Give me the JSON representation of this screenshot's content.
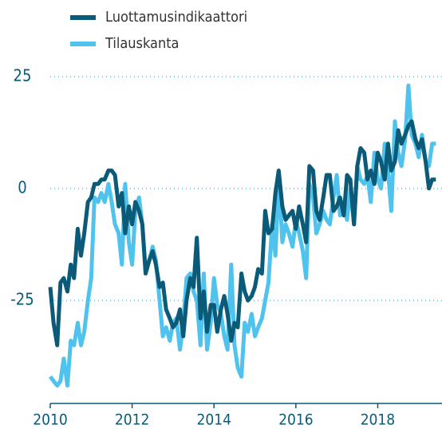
{
  "chart_data": {
    "type": "line",
    "x": [
      2010.0,
      2010.08,
      2010.17,
      2010.25,
      2010.33,
      2010.42,
      2010.5,
      2010.58,
      2010.67,
      2010.75,
      2010.83,
      2010.92,
      2011.0,
      2011.08,
      2011.17,
      2011.25,
      2011.33,
      2011.42,
      2011.5,
      2011.58,
      2011.67,
      2011.75,
      2011.83,
      2011.92,
      2012.0,
      2012.08,
      2012.17,
      2012.25,
      2012.33,
      2012.42,
      2012.5,
      2012.58,
      2012.67,
      2012.75,
      2012.83,
      2012.92,
      2013.0,
      2013.08,
      2013.17,
      2013.25,
      2013.33,
      2013.42,
      2013.5,
      2013.58,
      2013.67,
      2013.75,
      2013.83,
      2013.92,
      2014.0,
      2014.08,
      2014.17,
      2014.25,
      2014.33,
      2014.42,
      2014.5,
      2014.58,
      2014.67,
      2014.75,
      2014.83,
      2014.92,
      2015.0,
      2015.08,
      2015.17,
      2015.25,
      2015.33,
      2015.42,
      2015.5,
      2015.58,
      2015.67,
      2015.75,
      2015.83,
      2015.92,
      2016.0,
      2016.08,
      2016.17,
      2016.25,
      2016.33,
      2016.42,
      2016.5,
      2016.58,
      2016.67,
      2016.75,
      2016.83,
      2016.92,
      2017.0,
      2017.08,
      2017.17,
      2017.25,
      2017.33,
      2017.42,
      2017.5,
      2017.58,
      2017.67,
      2017.75,
      2017.83,
      2017.92,
      2018.0,
      2018.08,
      2018.17,
      2018.25,
      2018.33,
      2018.42,
      2018.5,
      2018.58,
      2018.67,
      2018.75,
      2018.83,
      2018.92,
      2019.0,
      2019.08,
      2019.17,
      2019.25,
      2019.33,
      2019.42
    ],
    "series": [
      {
        "name": "Luottamusindikaattori",
        "color": "#0b5a78",
        "values": [
          -22,
          -30,
          -35,
          -21,
          -20,
          -23,
          -17,
          -20,
          -9,
          -15,
          -10,
          -3,
          -2,
          1,
          1,
          2,
          2,
          4,
          4,
          3,
          -4,
          -1,
          -10,
          -4,
          -8,
          -3,
          -5,
          -8,
          -19,
          -16,
          -14,
          -17,
          -22,
          -21,
          -27,
          -29,
          -31,
          -30,
          -27,
          -33,
          -25,
          -20,
          -22,
          -11,
          -29,
          -23,
          -32,
          -26,
          -26,
          -32,
          -27,
          -24,
          -28,
          -34,
          -30,
          -31,
          -19,
          -23,
          -25,
          -24,
          -22,
          -18,
          -19,
          -5,
          -10,
          -9,
          -1,
          4,
          -4,
          -7,
          -6,
          -5,
          -9,
          -4,
          -8,
          -12,
          5,
          4,
          -5,
          -7,
          -2,
          3,
          3,
          -5,
          -4,
          -2,
          -6,
          3,
          2,
          -8,
          5,
          9,
          8,
          2,
          4,
          1,
          8,
          6,
          2,
          10,
          4,
          6,
          13,
          10,
          12,
          14,
          15,
          11,
          9,
          11,
          6,
          0,
          2,
          2
        ]
      },
      {
        "name": "Tilauskanta",
        "color": "#4fc3ee",
        "values": [
          -42,
          -43,
          -44,
          -43,
          -38,
          -44,
          -34,
          -35,
          -30,
          -35,
          -32,
          -25,
          -20,
          -2,
          -3,
          -1,
          -3,
          1,
          -3,
          -8,
          -10,
          -17,
          1,
          -12,
          -17,
          -5,
          -2,
          -8,
          -18,
          -16,
          -13,
          -16,
          -25,
          -33,
          -31,
          -34,
          -30,
          -29,
          -36,
          -30,
          -20,
          -19,
          -23,
          -25,
          -35,
          -19,
          -36,
          -30,
          -20,
          -26,
          -28,
          -33,
          -36,
          -17,
          -35,
          -40,
          -42,
          -30,
          -32,
          -28,
          -33,
          -31,
          -29,
          -25,
          -21,
          -8,
          -15,
          3,
          -12,
          -8,
          -10,
          -13,
          -7,
          -10,
          -14,
          -20,
          1,
          -2,
          -10,
          -8,
          -5,
          -7,
          -8,
          -2,
          3,
          -6,
          -4,
          -7,
          0,
          -8,
          5,
          2,
          1,
          3,
          -3,
          8,
          2,
          0,
          10,
          4,
          -5,
          15,
          8,
          5,
          11,
          23,
          12,
          10,
          7,
          12,
          6,
          5,
          10,
          10
        ]
      }
    ],
    "xlim": [
      2010,
      2019.57
    ],
    "xticks": [
      2010,
      2012,
      2014,
      2016,
      2018
    ],
    "ylim": [
      -48,
      28
    ],
    "yticks": [
      -25,
      0,
      25
    ],
    "grid": true,
    "legend": "top-left"
  }
}
